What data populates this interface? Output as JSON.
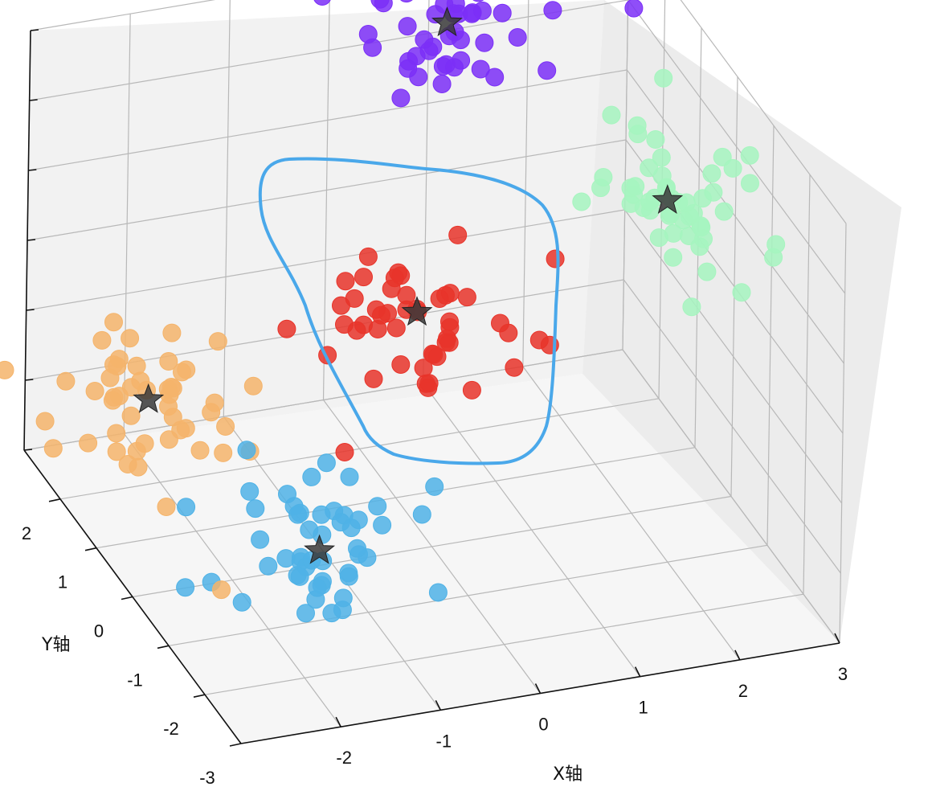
{
  "chart_data": {
    "type": "scatter",
    "projection": "3d",
    "title": "",
    "xlabel": "X轴",
    "ylabel": "Y轴",
    "zlabel": "",
    "x_ticks": [
      "-2",
      "-1",
      "0",
      "1",
      "2",
      "3"
    ],
    "y_ticks": [
      "-3",
      "-2",
      "-1",
      "0",
      "1",
      "2"
    ],
    "xlim": [
      -3,
      3
    ],
    "ylim": [
      -3,
      3
    ],
    "zlim": [
      -3,
      3
    ],
    "grid": true,
    "colors": {
      "purple": "#7b2ff7",
      "green": "#a6f5bf",
      "red": "#e8342a",
      "orange": "#f5b46b",
      "blue": "#4fb2e6",
      "center_star": "#3a3a3a",
      "lasso": "#4aa8ea"
    },
    "clusters": [
      {
        "color": "purple",
        "center": [
          1.0,
          2.5,
          2.5
        ],
        "n": 50
      },
      {
        "color": "green",
        "center": [
          2.5,
          0.5,
          1.0
        ],
        "n": 50
      },
      {
        "color": "red",
        "center": [
          0.0,
          0.5,
          0.0
        ],
        "n": 50
      },
      {
        "color": "orange",
        "center": [
          -2.5,
          1.0,
          -1.0
        ],
        "n": 50
      },
      {
        "color": "blue",
        "center": [
          -1.5,
          -1.0,
          -2.0
        ],
        "n": 50
      }
    ],
    "centers_marker": "star",
    "annotations": [
      "hand-drawn lasso selection around red cluster"
    ]
  }
}
